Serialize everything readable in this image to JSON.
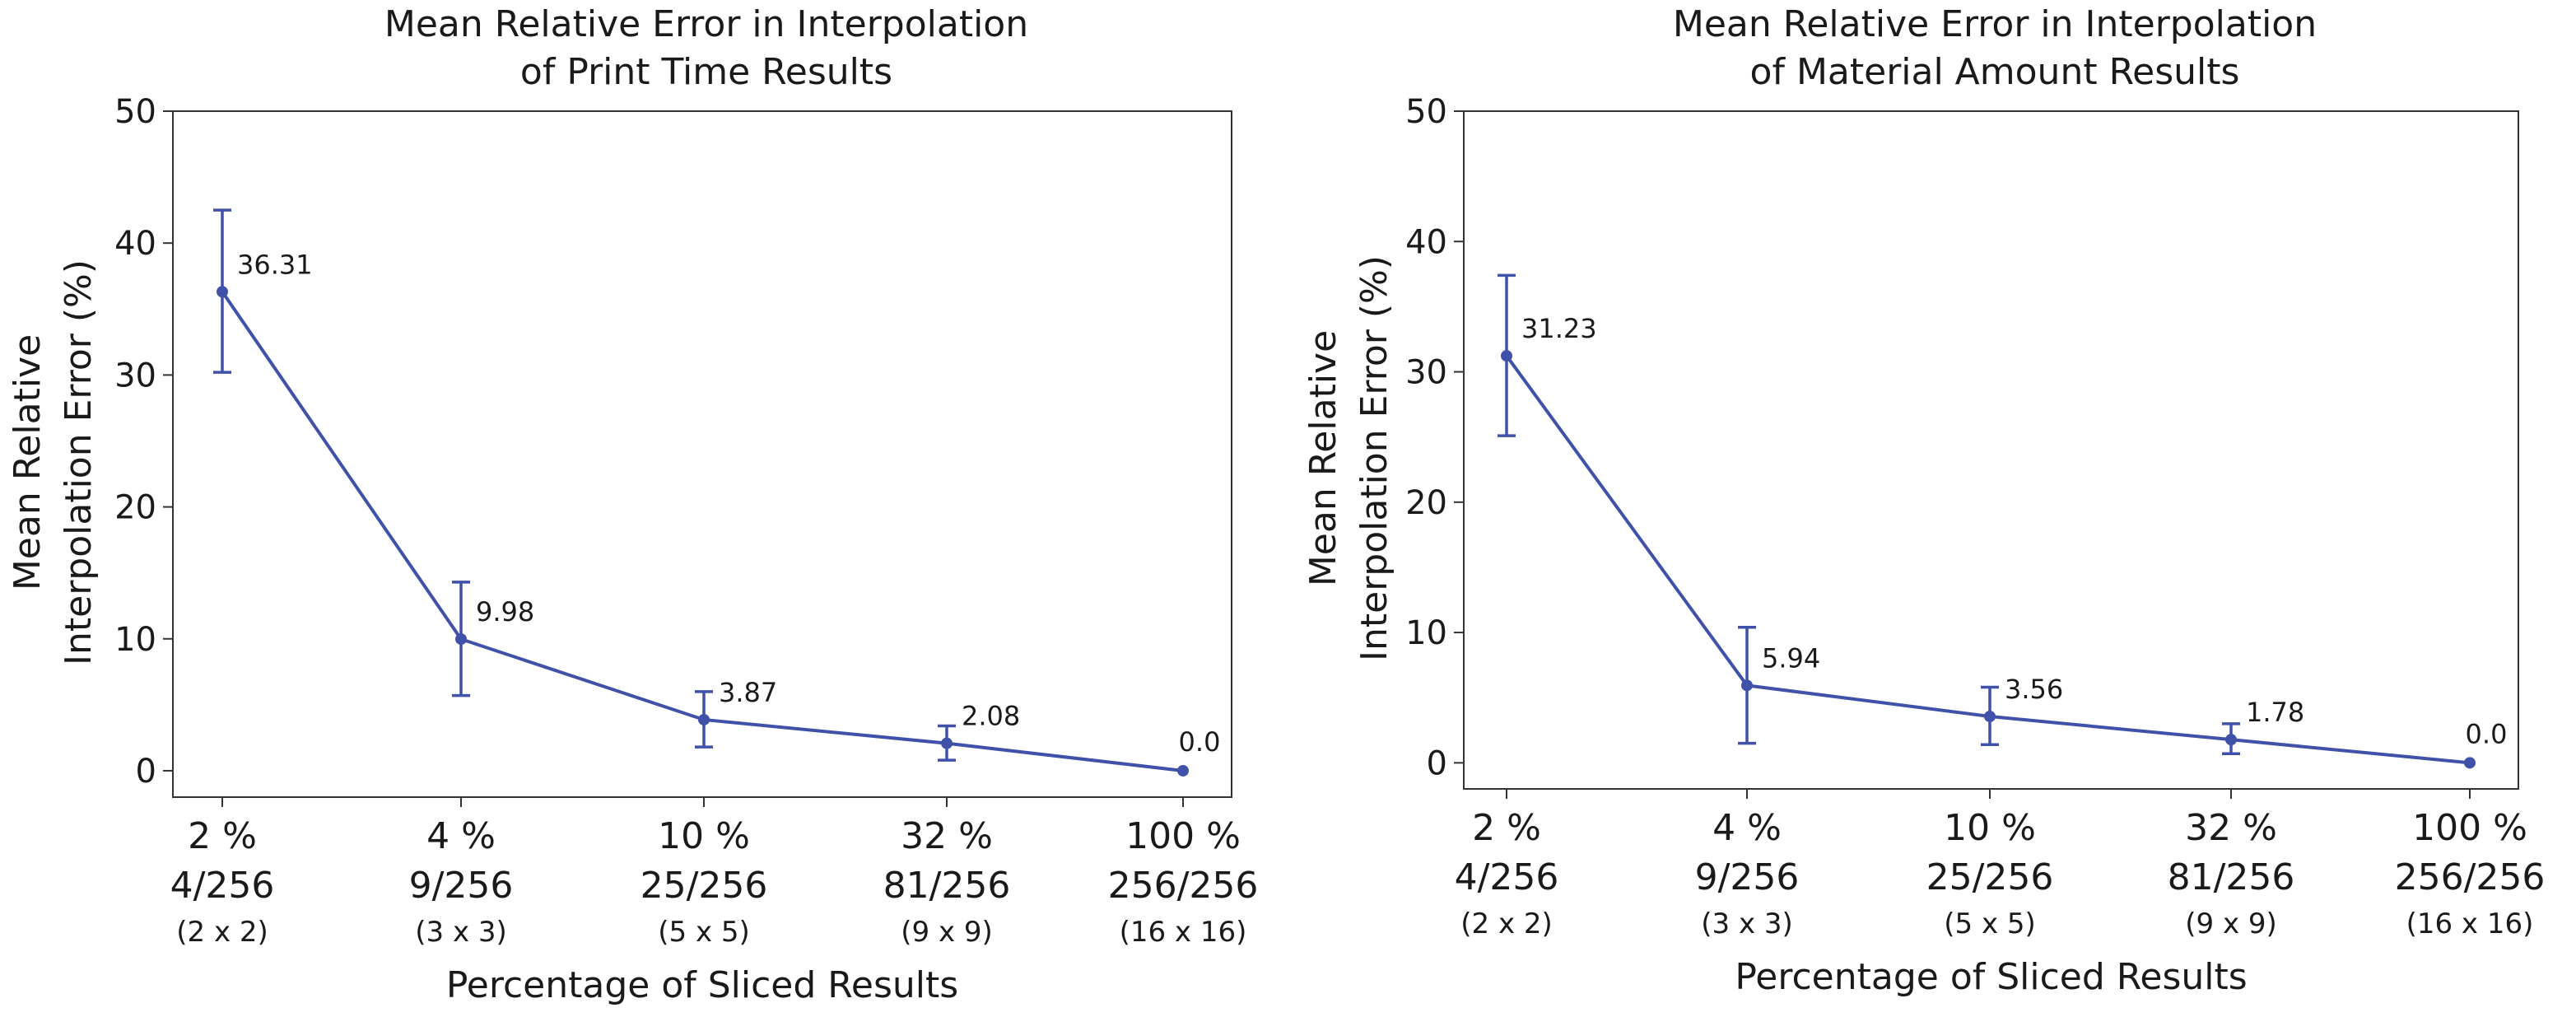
{
  "colors": {
    "series": "#3f51a8",
    "axis": "#333333",
    "text": "#1a1a1a"
  },
  "chart_data": [
    {
      "type": "line",
      "title_lines": [
        "Mean Relative Error in Interpolation",
        "of Print Time Results"
      ],
      "xlabel": "Percentage of Sliced Results",
      "ylabel_lines": [
        "Mean Relative",
        "Interpolation Error (%)"
      ],
      "ylim": [
        -2,
        50
      ],
      "yticks": [
        0,
        10,
        20,
        30,
        40,
        50
      ],
      "grid": false,
      "categories": [
        {
          "percent": "2 %",
          "fraction": "4/256",
          "grid": "(2 x 2)"
        },
        {
          "percent": "4 %",
          "fraction": "9/256",
          "grid": "(3 x 3)"
        },
        {
          "percent": "10 %",
          "fraction": "25/256",
          "grid": "(5 x 5)"
        },
        {
          "percent": "32 %",
          "fraction": "81/256",
          "grid": "(9 x 9)"
        },
        {
          "percent": "100 %",
          "fraction": "256/256",
          "grid": "(16 x 16)"
        }
      ],
      "values": [
        36.31,
        9.98,
        3.87,
        2.08,
        0.0
      ],
      "value_labels": [
        "36.31",
        "9.98",
        "3.87",
        "2.08",
        "0.0"
      ],
      "error_low": [
        30.2,
        5.7,
        1.8,
        0.8,
        0.0
      ],
      "error_high": [
        42.5,
        14.3,
        6.0,
        3.4,
        0.0
      ]
    },
    {
      "type": "line",
      "title_lines": [
        "Mean Relative Error in Interpolation",
        "of Material Amount Results"
      ],
      "xlabel": "Percentage of Sliced Results",
      "ylabel_lines": [
        "Mean Relative",
        "Interpolation Error (%)"
      ],
      "ylim": [
        -2,
        50
      ],
      "yticks": [
        0,
        10,
        20,
        30,
        40,
        50
      ],
      "grid": false,
      "categories": [
        {
          "percent": "2 %",
          "fraction": "4/256",
          "grid": "(2 x 2)"
        },
        {
          "percent": "4 %",
          "fraction": "9/256",
          "grid": "(3 x 3)"
        },
        {
          "percent": "10 %",
          "fraction": "25/256",
          "grid": "(5 x 5)"
        },
        {
          "percent": "32 %",
          "fraction": "81/256",
          "grid": "(9 x 9)"
        },
        {
          "percent": "100 %",
          "fraction": "256/256",
          "grid": "(16 x 16)"
        }
      ],
      "values": [
        31.23,
        5.94,
        3.56,
        1.78,
        0.0
      ],
      "value_labels": [
        "31.23",
        "5.94",
        "3.56",
        "1.78",
        "0.0"
      ],
      "error_low": [
        25.1,
        1.5,
        1.4,
        0.7,
        0.0
      ],
      "error_high": [
        37.4,
        10.4,
        5.8,
        3.0,
        0.0
      ]
    }
  ]
}
